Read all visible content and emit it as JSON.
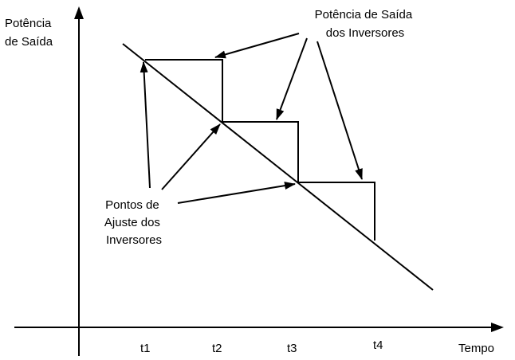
{
  "axes": {
    "y_label": [
      "Potência",
      "de Saída"
    ],
    "x_label": "Tempo"
  },
  "ticks": [
    "t1",
    "t2",
    "t3",
    "t4"
  ],
  "annotations": {
    "output_power": [
      "Potência de Saída",
      "dos Inversores"
    ],
    "set_points": [
      "Pontos de",
      "Ajuste dos",
      "Inversores"
    ]
  }
}
